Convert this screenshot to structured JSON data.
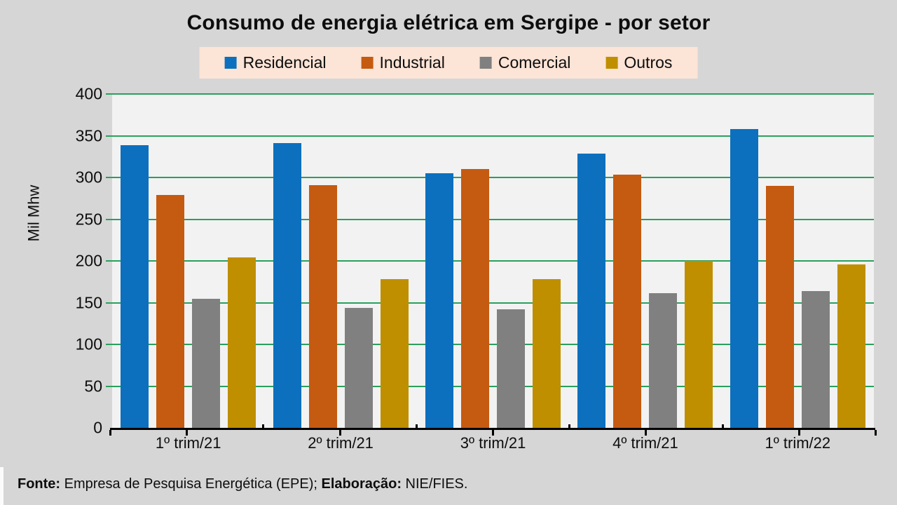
{
  "title": "Consumo de energia elétrica em Sergipe - por setor",
  "footer": {
    "fonte_label": "Fonte:",
    "fonte_text": " Empresa de Pesquisa Energética (EPE); ",
    "elaboracao_label": "Elaboração:",
    "elaboracao_text": " NIE/FIES."
  },
  "colors": {
    "background": "#d6d6d6",
    "plot_background": "#f2f2f2",
    "gridline": "#2aa05e",
    "axis": "#000000",
    "legend_background": "#fce4d6",
    "text": "#0d0d0d"
  },
  "chart_data": {
    "type": "bar",
    "title": "Consumo de energia elétrica em Sergipe - por setor",
    "xlabel": "",
    "ylabel": "Mil Mhw",
    "ylim": [
      0,
      400
    ],
    "yticks": [
      0,
      50,
      100,
      150,
      200,
      250,
      300,
      350,
      400
    ],
    "grid": true,
    "legend_position": "top",
    "categories": [
      "1º trim/21",
      "2º trim/21",
      "3º trim/21",
      "4º trim/21",
      "1º trim/22"
    ],
    "series": [
      {
        "name": "Residencial",
        "color": "#0c70be",
        "values": [
          339,
          341,
          305,
          329,
          358
        ]
      },
      {
        "name": "Industrial",
        "color": "#c55a11",
        "values": [
          279,
          291,
          310,
          303,
          290
        ]
      },
      {
        "name": "Comercial",
        "color": "#808080",
        "values": [
          155,
          144,
          142,
          161,
          164
        ]
      },
      {
        "name": "Outros",
        "color": "#bf8f00",
        "values": [
          204,
          178,
          178,
          200,
          196
        ]
      }
    ]
  }
}
